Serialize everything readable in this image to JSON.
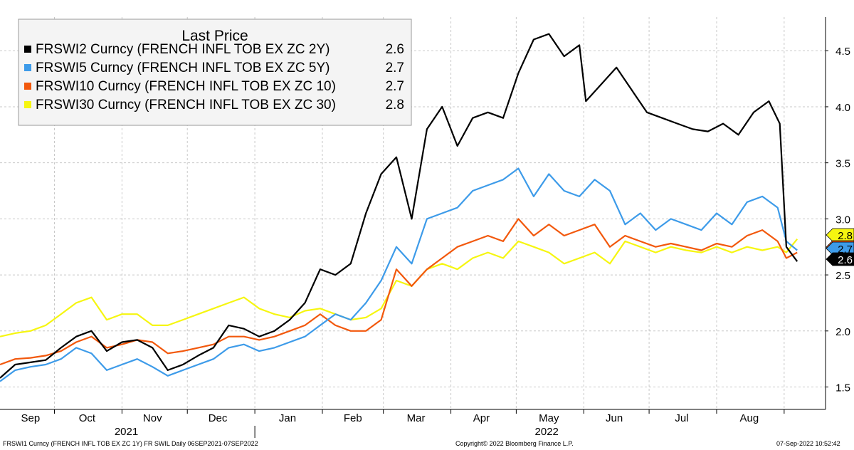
{
  "chart_data": {
    "type": "line",
    "legend": {
      "title": "Last Price",
      "position": "top-left"
    },
    "series": [
      {
        "name": "FRSWI2 Curncy (FRENCH INFL TOB EX ZC 2Y)",
        "last": "2.6",
        "color": "#000000",
        "points": [
          [
            "2021-09-06",
            1.58
          ],
          [
            "2021-09-13",
            1.7
          ],
          [
            "2021-09-20",
            1.72
          ],
          [
            "2021-09-27",
            1.74
          ],
          [
            "2021-10-04",
            1.85
          ],
          [
            "2021-10-11",
            1.95
          ],
          [
            "2021-10-18",
            2.0
          ],
          [
            "2021-10-25",
            1.82
          ],
          [
            "2021-11-01",
            1.9
          ],
          [
            "2021-11-08",
            1.92
          ],
          [
            "2021-11-15",
            1.85
          ],
          [
            "2021-11-22",
            1.65
          ],
          [
            "2021-11-29",
            1.7
          ],
          [
            "2021-12-06",
            1.78
          ],
          [
            "2021-12-13",
            1.85
          ],
          [
            "2021-12-20",
            2.05
          ],
          [
            "2021-12-27",
            2.02
          ],
          [
            "2022-01-03",
            1.95
          ],
          [
            "2022-01-10",
            2.0
          ],
          [
            "2022-01-17",
            2.1
          ],
          [
            "2022-01-24",
            2.25
          ],
          [
            "2022-01-31",
            2.55
          ],
          [
            "2022-02-07",
            2.5
          ],
          [
            "2022-02-14",
            2.6
          ],
          [
            "2022-02-21",
            3.05
          ],
          [
            "2022-02-28",
            3.4
          ],
          [
            "2022-03-07",
            3.55
          ],
          [
            "2022-03-14",
            3.0
          ],
          [
            "2022-03-21",
            3.8
          ],
          [
            "2022-03-28",
            4.0
          ],
          [
            "2022-04-04",
            3.65
          ],
          [
            "2022-04-11",
            3.9
          ],
          [
            "2022-04-18",
            3.95
          ],
          [
            "2022-04-25",
            3.9
          ],
          [
            "2022-05-02",
            4.3
          ],
          [
            "2022-05-09",
            4.6
          ],
          [
            "2022-05-16",
            4.65
          ],
          [
            "2022-05-23",
            4.45
          ],
          [
            "2022-05-30",
            4.55
          ],
          [
            "2022-06-02",
            4.05
          ],
          [
            "2022-06-09",
            4.2
          ],
          [
            "2022-06-16",
            4.35
          ],
          [
            "2022-06-23",
            4.15
          ],
          [
            "2022-06-30",
            3.95
          ],
          [
            "2022-07-07",
            3.9
          ],
          [
            "2022-07-14",
            3.85
          ],
          [
            "2022-07-21",
            3.8
          ],
          [
            "2022-07-28",
            3.78
          ],
          [
            "2022-08-04",
            3.85
          ],
          [
            "2022-08-11",
            3.75
          ],
          [
            "2022-08-18",
            3.95
          ],
          [
            "2022-08-25",
            4.05
          ],
          [
            "2022-08-30",
            3.85
          ],
          [
            "2022-09-02",
            2.75
          ],
          [
            "2022-09-07",
            2.62
          ]
        ]
      },
      {
        "name": "FRSWI5 Curncy (FRENCH INFL TOB EX ZC 5Y)",
        "last": "2.7",
        "color": "#3d9be9",
        "points": [
          [
            "2021-09-06",
            1.55
          ],
          [
            "2021-09-13",
            1.65
          ],
          [
            "2021-09-20",
            1.68
          ],
          [
            "2021-09-27",
            1.7
          ],
          [
            "2021-10-04",
            1.75
          ],
          [
            "2021-10-11",
            1.85
          ],
          [
            "2021-10-18",
            1.8
          ],
          [
            "2021-10-25",
            1.65
          ],
          [
            "2021-11-01",
            1.7
          ],
          [
            "2021-11-08",
            1.75
          ],
          [
            "2021-11-15",
            1.68
          ],
          [
            "2021-11-22",
            1.6
          ],
          [
            "2021-11-29",
            1.65
          ],
          [
            "2021-12-06",
            1.7
          ],
          [
            "2021-12-13",
            1.75
          ],
          [
            "2021-12-20",
            1.85
          ],
          [
            "2021-12-27",
            1.88
          ],
          [
            "2022-01-03",
            1.82
          ],
          [
            "2022-01-10",
            1.85
          ],
          [
            "2022-01-17",
            1.9
          ],
          [
            "2022-01-24",
            1.95
          ],
          [
            "2022-01-31",
            2.05
          ],
          [
            "2022-02-07",
            2.15
          ],
          [
            "2022-02-14",
            2.1
          ],
          [
            "2022-02-21",
            2.25
          ],
          [
            "2022-02-28",
            2.45
          ],
          [
            "2022-03-07",
            2.75
          ],
          [
            "2022-03-14",
            2.6
          ],
          [
            "2022-03-21",
            3.0
          ],
          [
            "2022-03-28",
            3.05
          ],
          [
            "2022-04-04",
            3.1
          ],
          [
            "2022-04-11",
            3.25
          ],
          [
            "2022-04-18",
            3.3
          ],
          [
            "2022-04-25",
            3.35
          ],
          [
            "2022-05-02",
            3.45
          ],
          [
            "2022-05-09",
            3.2
          ],
          [
            "2022-05-16",
            3.4
          ],
          [
            "2022-05-23",
            3.25
          ],
          [
            "2022-05-30",
            3.2
          ],
          [
            "2022-06-06",
            3.35
          ],
          [
            "2022-06-13",
            3.25
          ],
          [
            "2022-06-20",
            2.95
          ],
          [
            "2022-06-27",
            3.05
          ],
          [
            "2022-07-04",
            2.9
          ],
          [
            "2022-07-11",
            3.0
          ],
          [
            "2022-07-18",
            2.95
          ],
          [
            "2022-07-25",
            2.9
          ],
          [
            "2022-08-01",
            3.05
          ],
          [
            "2022-08-08",
            2.95
          ],
          [
            "2022-08-15",
            3.15
          ],
          [
            "2022-08-22",
            3.2
          ],
          [
            "2022-08-29",
            3.1
          ],
          [
            "2022-09-02",
            2.8
          ],
          [
            "2022-09-07",
            2.72
          ]
        ]
      },
      {
        "name": "FRSWI10 Curncy (FRENCH INFL TOB EX ZC 10)",
        "last": "2.7",
        "color": "#f2580c",
        "points": [
          [
            "2021-09-06",
            1.7
          ],
          [
            "2021-09-13",
            1.75
          ],
          [
            "2021-09-20",
            1.76
          ],
          [
            "2021-09-27",
            1.78
          ],
          [
            "2021-10-04",
            1.82
          ],
          [
            "2021-10-11",
            1.9
          ],
          [
            "2021-10-18",
            1.95
          ],
          [
            "2021-10-25",
            1.85
          ],
          [
            "2021-11-01",
            1.88
          ],
          [
            "2021-11-08",
            1.92
          ],
          [
            "2021-11-15",
            1.9
          ],
          [
            "2021-11-22",
            1.8
          ],
          [
            "2021-11-29",
            1.82
          ],
          [
            "2021-12-06",
            1.85
          ],
          [
            "2021-12-13",
            1.88
          ],
          [
            "2021-12-20",
            1.95
          ],
          [
            "2021-12-27",
            1.95
          ],
          [
            "2022-01-03",
            1.92
          ],
          [
            "2022-01-10",
            1.95
          ],
          [
            "2022-01-17",
            2.0
          ],
          [
            "2022-01-24",
            2.05
          ],
          [
            "2022-01-31",
            2.15
          ],
          [
            "2022-02-07",
            2.05
          ],
          [
            "2022-02-14",
            2.0
          ],
          [
            "2022-02-21",
            2.0
          ],
          [
            "2022-02-28",
            2.1
          ],
          [
            "2022-03-07",
            2.55
          ],
          [
            "2022-03-14",
            2.4
          ],
          [
            "2022-03-21",
            2.55
          ],
          [
            "2022-03-28",
            2.65
          ],
          [
            "2022-04-04",
            2.75
          ],
          [
            "2022-04-11",
            2.8
          ],
          [
            "2022-04-18",
            2.85
          ],
          [
            "2022-04-25",
            2.8
          ],
          [
            "2022-05-02",
            3.0
          ],
          [
            "2022-05-09",
            2.85
          ],
          [
            "2022-05-16",
            2.95
          ],
          [
            "2022-05-23",
            2.85
          ],
          [
            "2022-05-30",
            2.9
          ],
          [
            "2022-06-06",
            2.95
          ],
          [
            "2022-06-13",
            2.75
          ],
          [
            "2022-06-20",
            2.85
          ],
          [
            "2022-06-27",
            2.8
          ],
          [
            "2022-07-04",
            2.75
          ],
          [
            "2022-07-11",
            2.78
          ],
          [
            "2022-07-18",
            2.75
          ],
          [
            "2022-07-25",
            2.72
          ],
          [
            "2022-08-01",
            2.78
          ],
          [
            "2022-08-08",
            2.75
          ],
          [
            "2022-08-15",
            2.85
          ],
          [
            "2022-08-22",
            2.9
          ],
          [
            "2022-08-29",
            2.8
          ],
          [
            "2022-09-02",
            2.65
          ],
          [
            "2022-09-07",
            2.7
          ]
        ]
      },
      {
        "name": "FRSWI30 Curncy (FRENCH INFL TOB EX ZC 30)",
        "last": "2.8",
        "color": "#f6f610",
        "points": [
          [
            "2021-09-06",
            1.95
          ],
          [
            "2021-09-13",
            1.98
          ],
          [
            "2021-09-20",
            2.0
          ],
          [
            "2021-09-27",
            2.05
          ],
          [
            "2021-10-04",
            2.15
          ],
          [
            "2021-10-11",
            2.25
          ],
          [
            "2021-10-18",
            2.3
          ],
          [
            "2021-10-25",
            2.1
          ],
          [
            "2021-11-01",
            2.15
          ],
          [
            "2021-11-08",
            2.15
          ],
          [
            "2021-11-15",
            2.05
          ],
          [
            "2021-11-22",
            2.05
          ],
          [
            "2021-11-29",
            2.1
          ],
          [
            "2021-12-06",
            2.15
          ],
          [
            "2021-12-13",
            2.2
          ],
          [
            "2021-12-20",
            2.25
          ],
          [
            "2021-12-27",
            2.3
          ],
          [
            "2022-01-03",
            2.2
          ],
          [
            "2022-01-10",
            2.15
          ],
          [
            "2022-01-17",
            2.12
          ],
          [
            "2022-01-24",
            2.18
          ],
          [
            "2022-01-31",
            2.2
          ],
          [
            "2022-02-07",
            2.15
          ],
          [
            "2022-02-14",
            2.1
          ],
          [
            "2022-02-21",
            2.12
          ],
          [
            "2022-02-28",
            2.2
          ],
          [
            "2022-03-07",
            2.45
          ],
          [
            "2022-03-14",
            2.4
          ],
          [
            "2022-03-21",
            2.55
          ],
          [
            "2022-03-28",
            2.6
          ],
          [
            "2022-04-04",
            2.55
          ],
          [
            "2022-04-11",
            2.65
          ],
          [
            "2022-04-18",
            2.7
          ],
          [
            "2022-04-25",
            2.65
          ],
          [
            "2022-05-02",
            2.8
          ],
          [
            "2022-05-09",
            2.75
          ],
          [
            "2022-05-16",
            2.7
          ],
          [
            "2022-05-23",
            2.6
          ],
          [
            "2022-05-30",
            2.65
          ],
          [
            "2022-06-06",
            2.7
          ],
          [
            "2022-06-13",
            2.6
          ],
          [
            "2022-06-20",
            2.8
          ],
          [
            "2022-06-27",
            2.75
          ],
          [
            "2022-07-04",
            2.7
          ],
          [
            "2022-07-11",
            2.75
          ],
          [
            "2022-07-18",
            2.72
          ],
          [
            "2022-07-25",
            2.7
          ],
          [
            "2022-08-01",
            2.75
          ],
          [
            "2022-08-08",
            2.7
          ],
          [
            "2022-08-15",
            2.75
          ],
          [
            "2022-08-22",
            2.72
          ],
          [
            "2022-08-29",
            2.75
          ],
          [
            "2022-09-02",
            2.7
          ],
          [
            "2022-09-07",
            2.82
          ]
        ]
      }
    ],
    "y_axis": {
      "position": "right",
      "min": 1.3,
      "max": 4.8,
      "ticks": [
        1.5,
        2.0,
        2.5,
        3.0,
        3.5,
        4.0,
        4.5
      ],
      "tick_labels": [
        "1.5",
        "2.0",
        "2.5",
        "3.0",
        "3.5",
        "4.0",
        "4.5"
      ]
    },
    "x_axis": {
      "start": "2021-09-06",
      "end": "2022-09-20",
      "month_ticks": [
        {
          "label": "Sep",
          "date": "2021-09-20"
        },
        {
          "label": "Oct",
          "date": "2021-10-16"
        },
        {
          "label": "Nov",
          "date": "2021-11-15"
        },
        {
          "label": "Dec",
          "date": "2021-12-15"
        },
        {
          "label": "Jan",
          "date": "2022-01-16"
        },
        {
          "label": "Feb",
          "date": "2022-02-15"
        },
        {
          "label": "Mar",
          "date": "2022-03-16"
        },
        {
          "label": "Apr",
          "date": "2022-04-15"
        },
        {
          "label": "May",
          "date": "2022-05-16"
        },
        {
          "label": "Jun",
          "date": "2022-06-15"
        },
        {
          "label": "Jul",
          "date": "2022-07-16"
        },
        {
          "label": "Aug",
          "date": "2022-08-16"
        }
      ],
      "month_boundaries": [
        "2021-10-01",
        "2021-11-01",
        "2021-12-01",
        "2022-01-01",
        "2022-02-01",
        "2022-03-01",
        "2022-04-01",
        "2022-05-01",
        "2022-06-01",
        "2022-07-01",
        "2022-08-01",
        "2022-09-01"
      ],
      "years": [
        {
          "label": "2021",
          "date": "2021-11-03"
        },
        {
          "label": "2022",
          "date": "2022-05-15"
        }
      ],
      "year_boundary": "2022-01-01"
    },
    "grid": true
  },
  "footer": {
    "left": "FRSWI1 Curncy (FRENCH INFL TOB EX ZC 1Y) FR SWIL  Daily 06SEP2021-07SEP2022",
    "center": "Copyright© 2022 Bloomberg Finance L.P.",
    "right": "07-Sep-2022 10:52:42"
  }
}
